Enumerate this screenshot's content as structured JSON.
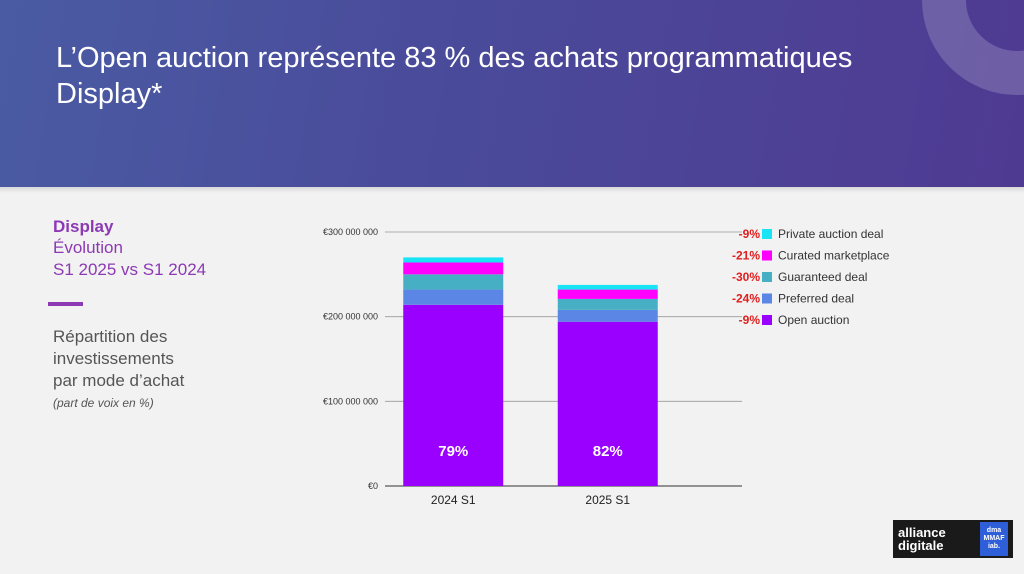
{
  "header": {
    "title": "L’Open auction représente 83 % des achats programmatiques Display*"
  },
  "left_panel": {
    "title": "Display",
    "subtitle_line1": "Évolution",
    "subtitle_line2": "S1 2025 vs S1 2024",
    "repartition_line1": "Répartition des",
    "repartition_line2": "investissements",
    "repartition_line3": "par mode d’achat",
    "note": "(part de voix en %)"
  },
  "logo": {
    "main_line1": "alliance",
    "main_line2": "digitale",
    "side_line1": "dma",
    "side_line2": "MMAF",
    "side_line3": "iab."
  },
  "colors": {
    "accent": "#8d39b4",
    "change": "#e01e1e"
  },
  "chart_data": {
    "type": "bar",
    "stacked": true,
    "categories": [
      "2024 S1",
      "2025 S1"
    ],
    "ylim": [
      0,
      300000000
    ],
    "yticks": [
      {
        "value": 0,
        "label": "€0"
      },
      {
        "value": 100000000,
        "label": "€100 000 000"
      },
      {
        "value": 200000000,
        "label": "€200 000 000"
      },
      {
        "value": 300000000,
        "label": "€300 000 000"
      }
    ],
    "grid": true,
    "legend_position": "right",
    "series": [
      {
        "name": "Open auction",
        "color": "#9900ff",
        "change": "-9%",
        "values": [
          214000000,
          194000000
        ]
      },
      {
        "name": "Preferred deal",
        "color": "#5b86e5",
        "change": "-24%",
        "values": [
          18000000,
          14000000
        ]
      },
      {
        "name": "Guaranteed deal",
        "color": "#47afc4",
        "change": "-30%",
        "values": [
          18000000,
          13000000
        ]
      },
      {
        "name": "Curated marketplace",
        "color": "#ff00ff",
        "change": "-21%",
        "values": [
          14000000,
          11000000
        ]
      },
      {
        "name": "Private auction deal",
        "color": "#19e4f5",
        "change": "-9%",
        "values": [
          6000000,
          5500000
        ]
      }
    ],
    "bar_labels": [
      "79%",
      "82%"
    ]
  }
}
